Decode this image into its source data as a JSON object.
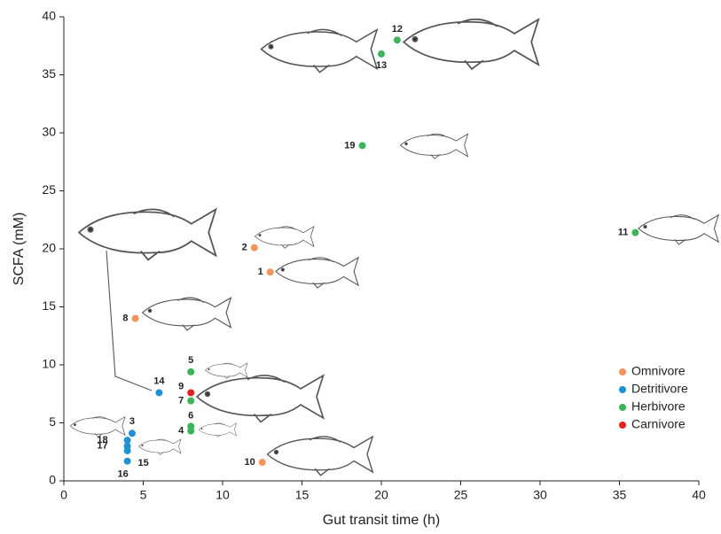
{
  "chart_data": {
    "type": "scatter",
    "x_label": "Gut transit time (h)",
    "y_label": "SCFA (mM)",
    "xlim": [
      0,
      40
    ],
    "xticks": [
      0,
      5,
      10,
      15,
      20,
      25,
      30,
      35,
      40
    ],
    "ylim": [
      0,
      40
    ],
    "yticks": [
      0,
      5,
      10,
      15,
      20,
      25,
      30,
      35,
      40
    ],
    "legend": "lower right",
    "series": [
      {
        "name": "Omnivore",
        "color": "#f4935a",
        "labels": [
          "1",
          "2",
          "8",
          "10"
        ],
        "x": [
          13,
          12,
          4.5,
          12.5
        ],
        "values": [
          18,
          20.1,
          14,
          1.6
        ]
      },
      {
        "name": "Detritivore",
        "color": "#1f8fd6",
        "labels": [
          "3",
          "14",
          "15",
          "16",
          "17",
          "18"
        ],
        "x": [
          4.3,
          6,
          4,
          4,
          4,
          4
        ],
        "values": [
          4.1,
          7.6,
          2.6,
          1.7,
          3,
          3.5
        ]
      },
      {
        "name": "Herbivore",
        "color": "#3cb55a",
        "labels": [
          "4",
          "5",
          "6",
          "7",
          "11",
          "12",
          "13",
          "19"
        ],
        "x": [
          8,
          8,
          8,
          8,
          36,
          21,
          20,
          18.8
        ],
        "values": [
          4.3,
          9.4,
          4.7,
          6.9,
          21.4,
          38,
          36.8,
          28.9
        ]
      },
      {
        "name": "Carnivore",
        "color": "#e3221f",
        "labels": [
          "9"
        ],
        "x": [
          8
        ],
        "values": [
          7.6
        ]
      }
    ]
  }
}
